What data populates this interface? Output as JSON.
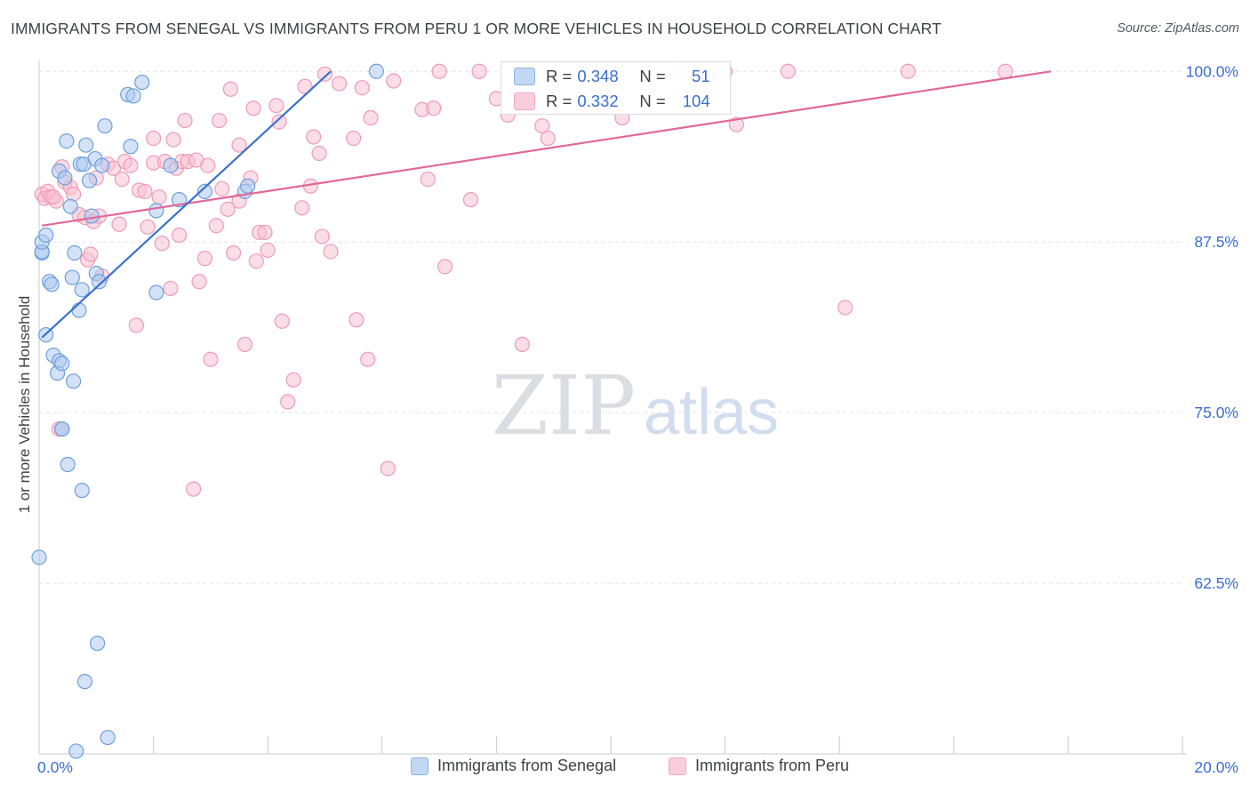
{
  "header": {
    "title": "IMMIGRANTS FROM SENEGAL VS IMMIGRANTS FROM PERU 1 OR MORE VEHICLES IN HOUSEHOLD CORRELATION CHART",
    "source": "Source: ZipAtlas.com"
  },
  "watermark": {
    "zip": "ZIP",
    "atlas": "atlas"
  },
  "colors": {
    "senegal_fill": "#aecbf0",
    "senegal_stroke": "#6f9fdc",
    "senegal_line": "#3a72cc",
    "peru_fill": "#f7c1d2",
    "peru_stroke": "#ee9bb6",
    "peru_line": "#e0689a",
    "tick_label": "#3a6fd1",
    "grid": "#e3e4e8"
  },
  "stats_legend": {
    "senegal": {
      "r_label": "R = ",
      "r_value": "0.348",
      "n_label": "N = ",
      "n_value": "51"
    },
    "peru": {
      "r_label": "R = ",
      "r_value": "0.332",
      "n_label": "N = ",
      "n_value": "104"
    }
  },
  "chart_data": {
    "type": "scatter",
    "title": "IMMIGRANTS FROM SENEGAL VS IMMIGRANTS FROM PERU 1 OR MORE VEHICLES IN HOUSEHOLD CORRELATION CHART",
    "xlabel": "",
    "ylabel": "1 or more Vehicles in Household",
    "xlim": [
      0,
      20
    ],
    "ylim": [
      50,
      100.8
    ],
    "x_tick_labels": [
      {
        "value": 0,
        "label": "0.0%"
      },
      {
        "value": 20,
        "label": "20.0%"
      }
    ],
    "y_tick_labels": [
      {
        "value": 100,
        "label": "100.0%"
      },
      {
        "value": 87.5,
        "label": "87.5%"
      },
      {
        "value": 75,
        "label": "75.0%"
      },
      {
        "value": 62.5,
        "label": "62.5%"
      }
    ],
    "grid": true,
    "legend_position": "bottom-center",
    "series": [
      {
        "name": "Immigrants from Senegal",
        "r": 0.348,
        "n": 51,
        "trend": {
          "x": [
            0.05,
            5.1
          ],
          "y": [
            80.5,
            100.0
          ]
        },
        "points": [
          [
            0.05,
            86.7
          ],
          [
            0.05,
            86.8
          ],
          [
            0.05,
            87.5
          ],
          [
            0.12,
            88.0
          ],
          [
            0.12,
            80.7
          ],
          [
            0.18,
            84.6
          ],
          [
            0.22,
            84.4
          ],
          [
            0.25,
            79.2
          ],
          [
            0.32,
            77.9
          ],
          [
            0.35,
            78.8
          ],
          [
            0.4,
            78.6
          ],
          [
            0.35,
            92.7
          ],
          [
            0.4,
            73.8
          ],
          [
            0.45,
            92.2
          ],
          [
            0.48,
            94.9
          ],
          [
            0.5,
            71.2
          ],
          [
            0.55,
            90.1
          ],
          [
            0.58,
            84.9
          ],
          [
            0.6,
            77.3
          ],
          [
            0.62,
            86.7
          ],
          [
            0.7,
            82.5
          ],
          [
            0.72,
            93.2
          ],
          [
            0.75,
            84.0
          ],
          [
            0.75,
            69.3
          ],
          [
            0.78,
            93.2
          ],
          [
            0.82,
            94.6
          ],
          [
            0.88,
            92.0
          ],
          [
            0.92,
            89.4
          ],
          [
            0.98,
            93.6
          ],
          [
            1.0,
            85.2
          ],
          [
            1.02,
            58.1
          ],
          [
            1.05,
            84.6
          ],
          [
            1.1,
            93.1
          ],
          [
            1.15,
            96.0
          ],
          [
            1.55,
            98.3
          ],
          [
            1.6,
            94.5
          ],
          [
            1.65,
            98.2
          ],
          [
            1.8,
            99.2
          ],
          [
            2.05,
            89.8
          ],
          [
            2.05,
            83.8
          ],
          [
            2.3,
            93.1
          ],
          [
            2.45,
            90.6
          ],
          [
            2.9,
            91.2
          ],
          [
            3.6,
            91.2
          ],
          [
            3.65,
            91.6
          ],
          [
            5.9,
            100.0
          ],
          [
            0.0,
            64.4
          ],
          [
            0.8,
            55.3
          ],
          [
            1.2,
            51.2
          ],
          [
            0.65,
            50.2
          ],
          [
            0.4,
            73.8
          ]
        ]
      },
      {
        "name": "Immigrants from Peru",
        "r": 0.332,
        "n": 104,
        "trend": {
          "x": [
            0.05,
            17.7
          ],
          "y": [
            88.7,
            100.0
          ]
        },
        "points": [
          [
            0.05,
            91.0
          ],
          [
            0.1,
            90.7
          ],
          [
            0.15,
            91.2
          ],
          [
            0.2,
            90.8
          ],
          [
            0.3,
            90.5
          ],
          [
            0.4,
            93.0
          ],
          [
            0.45,
            91.9
          ],
          [
            0.55,
            91.5
          ],
          [
            0.6,
            91.0
          ],
          [
            0.7,
            89.5
          ],
          [
            0.8,
            89.3
          ],
          [
            0.85,
            86.2
          ],
          [
            0.9,
            86.6
          ],
          [
            0.95,
            89.0
          ],
          [
            1.0,
            92.2
          ],
          [
            1.05,
            89.4
          ],
          [
            1.1,
            85.0
          ],
          [
            1.2,
            93.2
          ],
          [
            1.3,
            92.9
          ],
          [
            1.4,
            88.8
          ],
          [
            1.45,
            92.1
          ],
          [
            1.5,
            93.4
          ],
          [
            1.6,
            93.1
          ],
          [
            1.7,
            81.4
          ],
          [
            1.75,
            91.3
          ],
          [
            1.85,
            91.2
          ],
          [
            1.9,
            88.6
          ],
          [
            2.0,
            95.1
          ],
          [
            2.0,
            93.3
          ],
          [
            2.1,
            90.8
          ],
          [
            2.15,
            87.4
          ],
          [
            2.2,
            93.4
          ],
          [
            2.3,
            84.1
          ],
          [
            2.35,
            95.0
          ],
          [
            2.4,
            92.9
          ],
          [
            2.45,
            88.0
          ],
          [
            2.5,
            93.4
          ],
          [
            2.55,
            96.4
          ],
          [
            2.6,
            93.4
          ],
          [
            2.7,
            69.4
          ],
          [
            2.75,
            93.5
          ],
          [
            2.8,
            84.6
          ],
          [
            2.9,
            86.3
          ],
          [
            2.95,
            93.1
          ],
          [
            3.0,
            78.9
          ],
          [
            3.1,
            88.7
          ],
          [
            3.15,
            96.4
          ],
          [
            3.2,
            91.4
          ],
          [
            3.3,
            89.9
          ],
          [
            3.35,
            98.7
          ],
          [
            3.4,
            86.7
          ],
          [
            3.5,
            90.5
          ],
          [
            3.5,
            94.6
          ],
          [
            3.6,
            80.0
          ],
          [
            3.7,
            92.2
          ],
          [
            3.75,
            97.3
          ],
          [
            3.8,
            86.1
          ],
          [
            3.85,
            88.2
          ],
          [
            3.95,
            88.2
          ],
          [
            4.0,
            86.9
          ],
          [
            4.15,
            97.5
          ],
          [
            4.2,
            96.3
          ],
          [
            4.25,
            81.7
          ],
          [
            4.35,
            75.8
          ],
          [
            4.45,
            77.4
          ],
          [
            4.6,
            90.0
          ],
          [
            4.65,
            98.9
          ],
          [
            4.75,
            91.6
          ],
          [
            4.8,
            95.2
          ],
          [
            4.9,
            94.0
          ],
          [
            4.95,
            87.9
          ],
          [
            5.0,
            99.8
          ],
          [
            5.1,
            86.8
          ],
          [
            5.25,
            99.1
          ],
          [
            5.5,
            95.1
          ],
          [
            5.55,
            81.8
          ],
          [
            5.65,
            98.8
          ],
          [
            5.75,
            78.9
          ],
          [
            5.8,
            96.6
          ],
          [
            6.1,
            70.9
          ],
          [
            6.2,
            99.3
          ],
          [
            6.7,
            97.2
          ],
          [
            6.8,
            92.1
          ],
          [
            6.9,
            97.3
          ],
          [
            7.0,
            100.0
          ],
          [
            7.1,
            85.7
          ],
          [
            7.55,
            90.6
          ],
          [
            7.7,
            100.0
          ],
          [
            8.0,
            98.0
          ],
          [
            8.2,
            96.8
          ],
          [
            8.45,
            80.0
          ],
          [
            8.8,
            96.0
          ],
          [
            8.9,
            95.1
          ],
          [
            9.0,
            99.0
          ],
          [
            10.2,
            96.6
          ],
          [
            11.2,
            100.0
          ],
          [
            12.0,
            100.0
          ],
          [
            12.2,
            96.1
          ],
          [
            13.1,
            100.0
          ],
          [
            14.1,
            82.7
          ],
          [
            15.2,
            100.0
          ],
          [
            16.9,
            100.0
          ],
          [
            0.25,
            90.8
          ],
          [
            0.35,
            73.8
          ]
        ]
      }
    ]
  },
  "bottom_legend": {
    "senegal_label": "Immigrants from Senegal",
    "peru_label": "Immigrants from Peru"
  }
}
